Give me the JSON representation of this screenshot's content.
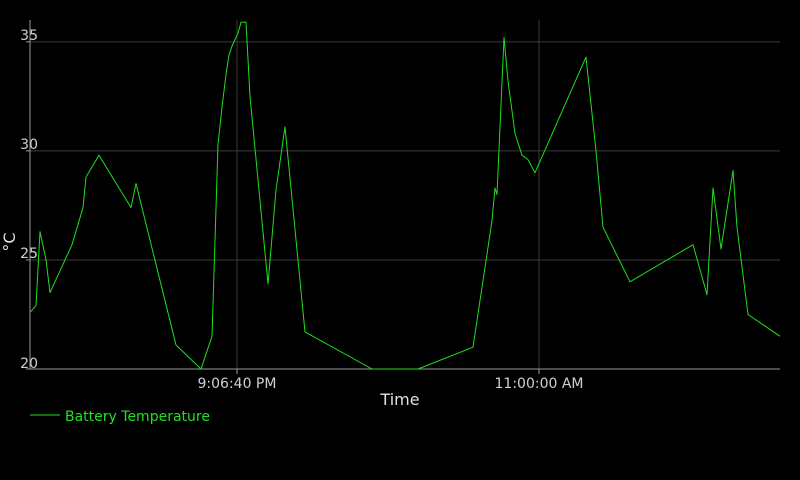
{
  "chart_data": {
    "type": "line",
    "xlabel": "Time",
    "ylabel": "°C",
    "ylim": [
      20,
      36
    ],
    "yticks": [
      20,
      25,
      30,
      35
    ],
    "xlim": [
      0,
      800
    ],
    "xticks": [
      {
        "x": 237,
        "label": "9:06:40 PM"
      },
      {
        "x": 539,
        "label": "11:00:00 AM"
      }
    ],
    "grid": true,
    "legend_position": "bottom-left",
    "colors": {
      "series": "#1ee01e",
      "grid": "#3a3a3a",
      "axis": "#9a9a9a"
    },
    "series": [
      {
        "name": "Battery Temperature",
        "points": [
          [
            30,
            22.6
          ],
          [
            36,
            22.9
          ],
          [
            40,
            26.3
          ],
          [
            46,
            25.0
          ],
          [
            50,
            23.5
          ],
          [
            72,
            25.7
          ],
          [
            83,
            27.4
          ],
          [
            86,
            28.8
          ],
          [
            99,
            29.8
          ],
          [
            131,
            27.4
          ],
          [
            136,
            28.5
          ],
          [
            176,
            21.1
          ],
          [
            201,
            20.0
          ],
          [
            212,
            21.5
          ],
          [
            218,
            30.3
          ],
          [
            222,
            32.0
          ],
          [
            226,
            33.5
          ],
          [
            229,
            34.4
          ],
          [
            232,
            34.8
          ],
          [
            235,
            35.1
          ],
          [
            238,
            35.4
          ],
          [
            241,
            35.9
          ],
          [
            246,
            35.9
          ],
          [
            250,
            32.5
          ],
          [
            268,
            23.9
          ],
          [
            276,
            28.2
          ],
          [
            285,
            31.1
          ],
          [
            305,
            21.7
          ],
          [
            372,
            20.0
          ],
          [
            418,
            20.0
          ],
          [
            473,
            21.0
          ],
          [
            492,
            26.8
          ],
          [
            495,
            28.3
          ],
          [
            497,
            28.0
          ],
          [
            504,
            35.2
          ],
          [
            508,
            33.2
          ],
          [
            515,
            30.8
          ],
          [
            522,
            29.8
          ],
          [
            528,
            29.6
          ],
          [
            535,
            29.0
          ],
          [
            586,
            34.3
          ],
          [
            596,
            30.0
          ],
          [
            603,
            26.5
          ],
          [
            630,
            24.0
          ],
          [
            693,
            25.7
          ],
          [
            707,
            23.4
          ],
          [
            713,
            28.3
          ],
          [
            721,
            25.5
          ],
          [
            733,
            29.1
          ],
          [
            737,
            26.5
          ],
          [
            748,
            22.5
          ],
          [
            780,
            21.5
          ]
        ]
      }
    ]
  }
}
